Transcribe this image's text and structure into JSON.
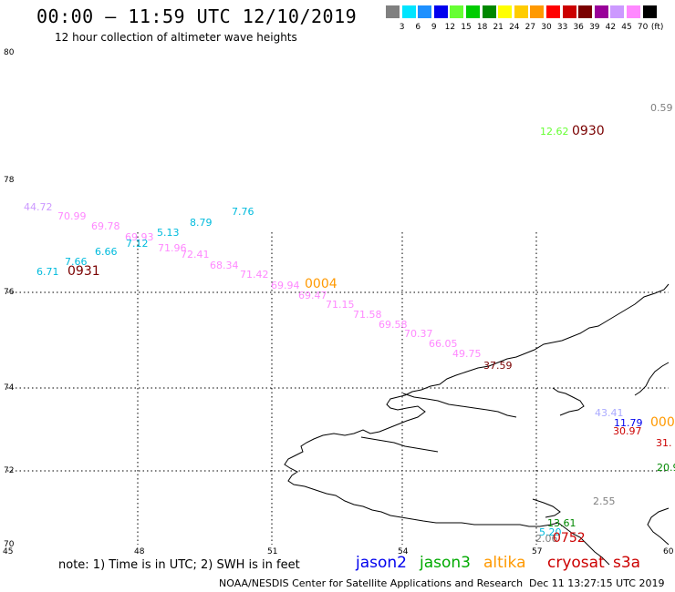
{
  "header": {
    "title": "00:00 – 11:59 UTC 12/10/2019",
    "subtitle": "12 hour collection of altimeter wave heights"
  },
  "legend": {
    "unit": "(ft)",
    "colors": [
      "#808080",
      "#00e5ff",
      "#1e90ff",
      "#0000ee",
      "#66ff33",
      "#00cc00",
      "#008800",
      "#ffff00",
      "#ffcc00",
      "#ff9900",
      "#ff0000",
      "#cc0000",
      "#7a0000",
      "#990099",
      "#cc99ff",
      "#ff88ff",
      "#000000"
    ],
    "labels": [
      "3",
      "6",
      "9",
      "12",
      "15",
      "18",
      "21",
      "24",
      "27",
      "30",
      "33",
      "36",
      "39",
      "42",
      "45",
      "70"
    ]
  },
  "axes": {
    "lat_labels": [
      "80",
      "78",
      "76",
      "74",
      "72",
      "70"
    ],
    "lon_labels": [
      "45",
      "48",
      "51",
      "54",
      "57",
      "60"
    ]
  },
  "data_labels": [
    {
      "text": "0.59",
      "color": "#808080"
    },
    {
      "text": "12.62",
      "color": "#66ff33"
    },
    {
      "text": "44.72",
      "color": "#cc99ff"
    },
    {
      "text": "70.99",
      "color": "#ff88ff"
    },
    {
      "text": "69.78",
      "color": "#ff88ff"
    },
    {
      "text": "69.93",
      "color": "#ff88ff"
    },
    {
      "text": "5.13",
      "color": "#00bbdd"
    },
    {
      "text": "8.79",
      "color": "#00bbdd"
    },
    {
      "text": "7.76",
      "color": "#00bbdd"
    },
    {
      "text": "7.12",
      "color": "#00bbdd"
    },
    {
      "text": "71.96",
      "color": "#ff88ff"
    },
    {
      "text": "72.41",
      "color": "#ff88ff"
    },
    {
      "text": "6.66",
      "color": "#00bbdd"
    },
    {
      "text": "7.66",
      "color": "#00bbdd"
    },
    {
      "text": "6.71",
      "color": "#00bbdd"
    },
    {
      "text": "68.34",
      "color": "#ff88ff"
    },
    {
      "text": "71.42",
      "color": "#ff88ff"
    },
    {
      "text": "69.94",
      "color": "#ff88ff"
    },
    {
      "text": "69.47",
      "color": "#ff88ff"
    },
    {
      "text": "71.15",
      "color": "#ff88ff"
    },
    {
      "text": "71.58",
      "color": "#ff88ff"
    },
    {
      "text": "69.58",
      "color": "#ff88ff"
    },
    {
      "text": "70.37",
      "color": "#ff88ff"
    },
    {
      "text": "66.05",
      "color": "#ff88ff"
    },
    {
      "text": "49.75",
      "color": "#ff88ff"
    },
    {
      "text": "37.59",
      "color": "#7a0000"
    },
    {
      "text": "43.41",
      "color": "#aaaaff"
    },
    {
      "text": "11.79",
      "color": "#0000ee"
    },
    {
      "text": "30.97",
      "color": "#cc0000"
    },
    {
      "text": "31.",
      "color": "#cc0000"
    },
    {
      "text": "20.9",
      "color": "#008800"
    },
    {
      "text": "2.55",
      "color": "#808080"
    },
    {
      "text": "2.06",
      "color": "#808080"
    },
    {
      "text": "13.61",
      "color": "#008800"
    },
    {
      "text": "5.20",
      "color": "#00bbdd"
    }
  ],
  "pass_labels": [
    {
      "text": "0930",
      "color": "#7a0000"
    },
    {
      "text": "0931",
      "color": "#7a0000"
    },
    {
      "text": "0004",
      "color": "#ff9900"
    },
    {
      "text": "000",
      "color": "#ff9900"
    },
    {
      "text": "0752",
      "color": "#cc0000"
    }
  ],
  "footer": {
    "note": "note: 1) Time is in UTC; 2) SWH is in feet",
    "satellites": [
      {
        "name": "jason2",
        "color": "#0000ee"
      },
      {
        "name": "jason3",
        "color": "#00aa00"
      },
      {
        "name": "altika",
        "color": "#ff9900"
      },
      {
        "name": "cryosat",
        "color": "#cc0000"
      },
      {
        "name": "s3a",
        "color": "#cc0000"
      }
    ],
    "credit": "NOAA/NESDIS Center for Satellite Applications and Research",
    "timestamp": "Dec 11 13:27:15 UTC 2019"
  }
}
